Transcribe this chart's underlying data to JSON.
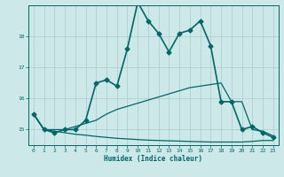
{
  "xlabel": "Humidex (Indice chaleur)",
  "background_color": "#cce8e8",
  "grid_color": "#aacccc",
  "line_color": "#006666",
  "xlim": [
    -0.5,
    23.5
  ],
  "ylim": [
    14.5,
    19.0
  ],
  "x_ticks": [
    0,
    1,
    2,
    3,
    4,
    5,
    6,
    7,
    8,
    9,
    10,
    11,
    12,
    13,
    14,
    15,
    16,
    17,
    18,
    19,
    20,
    21,
    22,
    23
  ],
  "y_ticks": [
    15,
    16,
    17,
    18
  ],
  "series": [
    {
      "x": [
        0,
        1,
        2,
        3,
        4,
        5,
        6,
        7,
        8,
        9,
        10,
        11,
        12,
        13,
        14,
        15,
        16,
        17,
        18,
        19,
        20,
        21,
        22,
        23
      ],
      "y": [
        15.5,
        15.0,
        14.9,
        15.0,
        15.0,
        15.3,
        16.5,
        16.6,
        16.4,
        17.6,
        19.1,
        18.5,
        18.1,
        17.5,
        18.1,
        18.2,
        18.5,
        17.7,
        15.9,
        15.9,
        15.0,
        15.1,
        14.9,
        14.75
      ],
      "marker": "D",
      "markersize": 2.5,
      "linewidth": 1.2
    },
    {
      "x": [
        0,
        1,
        2,
        3,
        4,
        5,
        6,
        7,
        8,
        9,
        10,
        11,
        12,
        13,
        14,
        15,
        16,
        17,
        18,
        19,
        20,
        21,
        22,
        23
      ],
      "y": [
        15.5,
        15.0,
        15.0,
        15.0,
        15.1,
        15.2,
        15.3,
        15.5,
        15.65,
        15.75,
        15.85,
        15.95,
        16.05,
        16.15,
        16.25,
        16.35,
        16.4,
        16.45,
        16.5,
        15.9,
        15.9,
        15.0,
        14.95,
        14.8
      ],
      "marker": null,
      "linewidth": 0.9
    },
    {
      "x": [
        0,
        1,
        2,
        3,
        4,
        5,
        6,
        7,
        8,
        9,
        10,
        11,
        12,
        13,
        14,
        15,
        16,
        17,
        18,
        19,
        20,
        21,
        22,
        23
      ],
      "y": [
        15.5,
        15.0,
        14.95,
        14.9,
        14.85,
        14.82,
        14.78,
        14.75,
        14.72,
        14.7,
        14.68,
        14.66,
        14.65,
        14.64,
        14.63,
        14.62,
        14.61,
        14.6,
        14.6,
        14.6,
        14.6,
        14.62,
        14.65,
        14.65
      ],
      "marker": null,
      "linewidth": 0.9
    }
  ]
}
